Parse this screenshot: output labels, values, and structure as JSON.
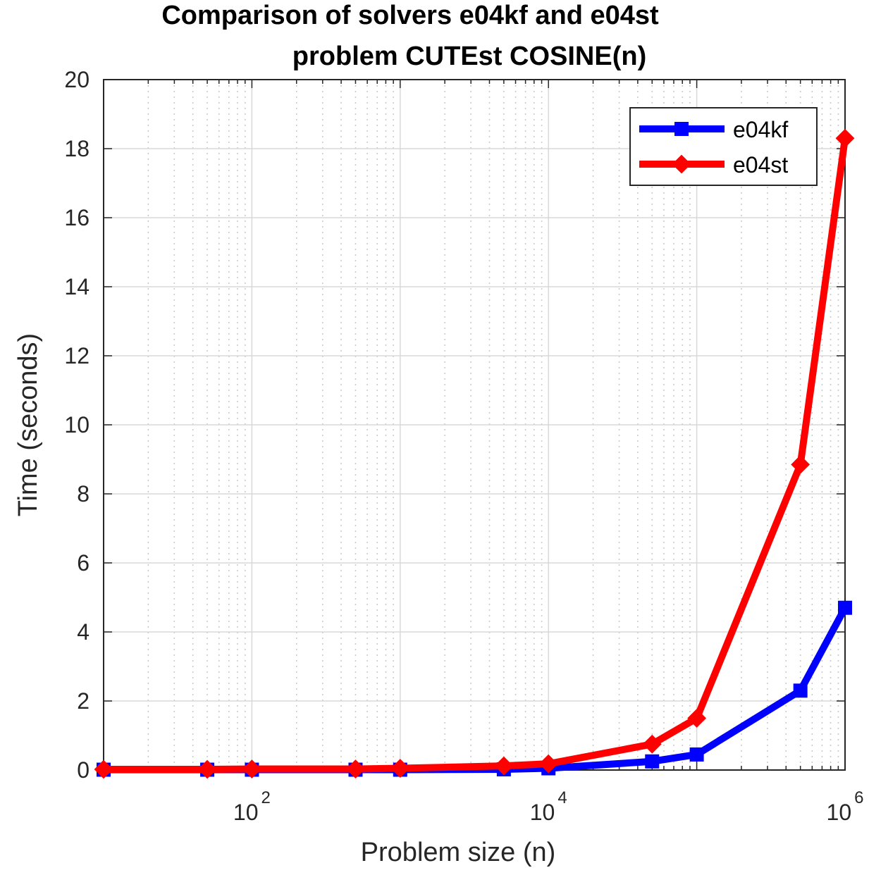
{
  "chart_data": {
    "type": "line",
    "title": [
      "Comparison of solvers e04kf and e04st",
      "problem CUTEst COSINE(n)"
    ],
    "xlabel": "Problem size (n)",
    "ylabel": "Time (seconds)",
    "xscale": "log",
    "xlim": [
      10,
      1000000
    ],
    "ylim": [
      0,
      20
    ],
    "x_ticks": [
      {
        "base": "10",
        "exp": "2",
        "value": 100
      },
      {
        "base": "10",
        "exp": "4",
        "value": 10000
      },
      {
        "base": "10",
        "exp": "6",
        "value": 1000000
      }
    ],
    "y_ticks": [
      "0",
      "2",
      "4",
      "6",
      "8",
      "10",
      "12",
      "14",
      "16",
      "18",
      "20"
    ],
    "grid": true,
    "legend_position": "top-right",
    "series": [
      {
        "name": "e04kf",
        "color": "#0000ff",
        "marker": "square",
        "x": [
          10,
          50,
          100,
          500,
          1000,
          5000,
          10000,
          50000,
          100000,
          500000,
          1000000
        ],
        "y": [
          0.01,
          0.01,
          0.01,
          0.01,
          0.01,
          0.02,
          0.05,
          0.25,
          0.45,
          2.3,
          4.7
        ]
      },
      {
        "name": "e04st",
        "color": "#ff0000",
        "marker": "diamond",
        "x": [
          10,
          50,
          100,
          500,
          1000,
          5000,
          10000,
          50000,
          100000,
          500000,
          1000000
        ],
        "y": [
          0.02,
          0.02,
          0.03,
          0.03,
          0.05,
          0.12,
          0.18,
          0.75,
          1.5,
          8.85,
          18.3
        ]
      }
    ]
  }
}
